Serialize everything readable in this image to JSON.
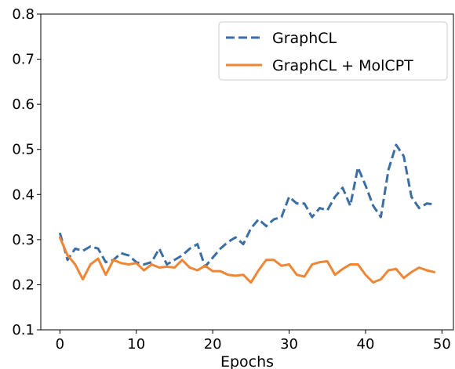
{
  "chart_data": {
    "type": "line",
    "title": "",
    "xlabel": "Epochs",
    "ylabel": "",
    "xlim": [
      -2.5,
      51.5
    ],
    "ylim": [
      0.1,
      0.8
    ],
    "x_ticks": [
      0,
      10,
      20,
      30,
      40,
      50
    ],
    "y_ticks": [
      0.1,
      0.2,
      0.3,
      0.4,
      0.5,
      0.6,
      0.7,
      0.8
    ],
    "x_tick_labels": [
      "0",
      "10",
      "20",
      "30",
      "40",
      "50"
    ],
    "y_tick_labels": [
      "0.1",
      "0.2",
      "0.3",
      "0.4",
      "0.5",
      "0.6",
      "0.7",
      "0.8"
    ],
    "grid": false,
    "legend_position": "top-right",
    "x": [
      0,
      1,
      2,
      3,
      4,
      5,
      6,
      7,
      8,
      9,
      10,
      11,
      12,
      13,
      14,
      15,
      16,
      17,
      18,
      19,
      20,
      21,
      22,
      23,
      24,
      25,
      26,
      27,
      28,
      29,
      30,
      31,
      32,
      33,
      34,
      35,
      36,
      37,
      38,
      39,
      40,
      41,
      42,
      43,
      44,
      45,
      46,
      47,
      48,
      49
    ],
    "series": [
      {
        "name": "GraphCL",
        "color": "#3a6ea5",
        "style": "dashed",
        "values": [
          0.315,
          0.255,
          0.28,
          0.275,
          0.285,
          0.28,
          0.25,
          0.255,
          0.27,
          0.265,
          0.25,
          0.245,
          0.25,
          0.28,
          0.245,
          0.255,
          0.265,
          0.28,
          0.29,
          0.24,
          0.26,
          0.28,
          0.295,
          0.305,
          0.29,
          0.325,
          0.345,
          0.33,
          0.345,
          0.35,
          0.395,
          0.38,
          0.38,
          0.35,
          0.37,
          0.365,
          0.395,
          0.415,
          0.375,
          0.46,
          0.42,
          0.375,
          0.35,
          0.455,
          0.51,
          0.485,
          0.395,
          0.37,
          0.38,
          0.378
        ]
      },
      {
        "name": "GraphCL + MolCPT",
        "color": "#ee8636",
        "style": "solid",
        "values": [
          0.305,
          0.265,
          0.245,
          0.212,
          0.245,
          0.258,
          0.222,
          0.255,
          0.248,
          0.245,
          0.248,
          0.232,
          0.245,
          0.238,
          0.24,
          0.238,
          0.255,
          0.238,
          0.232,
          0.242,
          0.23,
          0.23,
          0.222,
          0.22,
          0.222,
          0.205,
          0.232,
          0.255,
          0.255,
          0.242,
          0.245,
          0.222,
          0.218,
          0.245,
          0.25,
          0.252,
          0.222,
          0.235,
          0.245,
          0.245,
          0.222,
          0.205,
          0.212,
          0.232,
          0.235,
          0.215,
          0.228,
          0.238,
          0.232,
          0.228
        ]
      }
    ]
  }
}
